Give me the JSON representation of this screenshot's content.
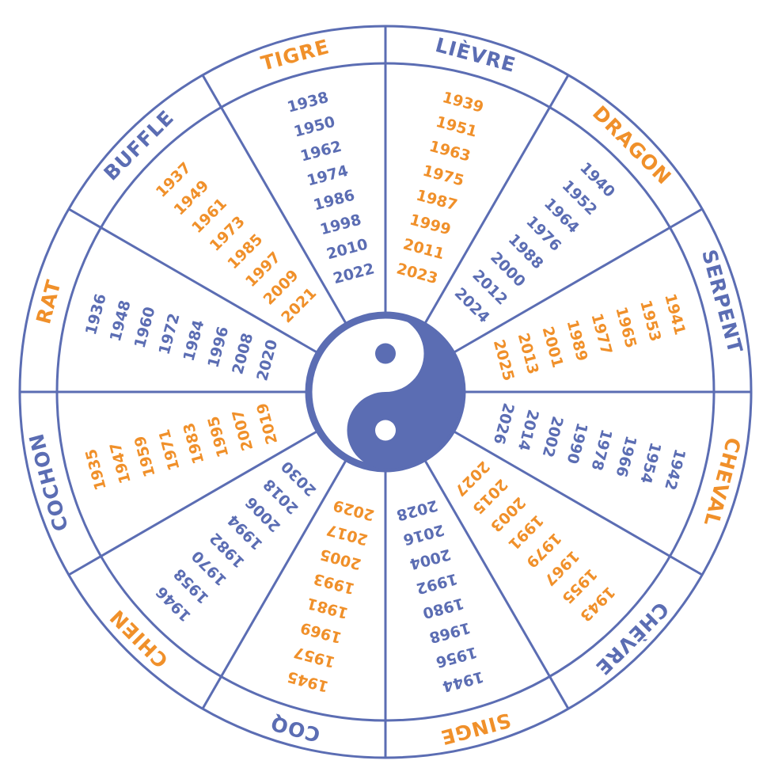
{
  "signs": [
    {
      "name": "RAT",
      "name_color": "#f0902a",
      "years_color": "#5b6db3",
      "years": [
        1936,
        1948,
        1960,
        1972,
        1984,
        1996,
        2008,
        2020
      ]
    },
    {
      "name": "BUFFLE",
      "name_color": "#5b6db3",
      "years_color": "#f0902a",
      "years": [
        1937,
        1949,
        1961,
        1973,
        1985,
        1997,
        2009,
        2021
      ]
    },
    {
      "name": "TIGRE",
      "name_color": "#f0902a",
      "years_color": "#5b6db3",
      "years": [
        1938,
        1950,
        1962,
        1974,
        1986,
        1998,
        2010,
        2022
      ]
    },
    {
      "name": "LIÈVRE",
      "name_color": "#5b6db3",
      "years_color": "#f0902a",
      "years": [
        1939,
        1951,
        1963,
        1975,
        1987,
        1999,
        2011,
        2023
      ]
    },
    {
      "name": "DRAGON",
      "name_color": "#f0902a",
      "years_color": "#5b6db3",
      "years": [
        1940,
        1952,
        1964,
        1976,
        1988,
        2000,
        2012,
        2024
      ]
    },
    {
      "name": "SERPENT",
      "name_color": "#5b6db3",
      "years_color": "#f0902a",
      "years": [
        1941,
        1953,
        1965,
        1977,
        1989,
        2001,
        2013,
        2025
      ]
    },
    {
      "name": "CHEVAL",
      "name_color": "#f0902a",
      "years_color": "#5b6db3",
      "years": [
        1942,
        1954,
        1966,
        1978,
        1990,
        2002,
        2014,
        2026
      ]
    },
    {
      "name": "CHÈVRE",
      "name_color": "#5b6db3",
      "years_color": "#f0902a",
      "years": [
        1943,
        1955,
        1967,
        1979,
        1991,
        2003,
        2015,
        2027
      ]
    },
    {
      "name": "SINGE",
      "name_color": "#f0902a",
      "years_color": "#5b6db3",
      "years": [
        1944,
        1956,
        1968,
        1980,
        1992,
        2004,
        2016,
        2028
      ]
    },
    {
      "name": "COQ",
      "name_color": "#5b6db3",
      "years_color": "#f0902a",
      "years": [
        1945,
        1957,
        1969,
        1981,
        1993,
        2005,
        2017,
        2029
      ]
    },
    {
      "name": "CHIEN",
      "name_color": "#f0902a",
      "years_color": "#5b6db3",
      "years": [
        1946,
        1958,
        1970,
        1982,
        1994,
        2006,
        2018,
        2030
      ]
    },
    {
      "name": "COCHON",
      "name_color": "#5b6db3",
      "years_color": "#f0902a",
      "years": [
        1935,
        1947,
        1959,
        1971,
        1983,
        1995,
        2007,
        2019
      ]
    }
  ]
}
